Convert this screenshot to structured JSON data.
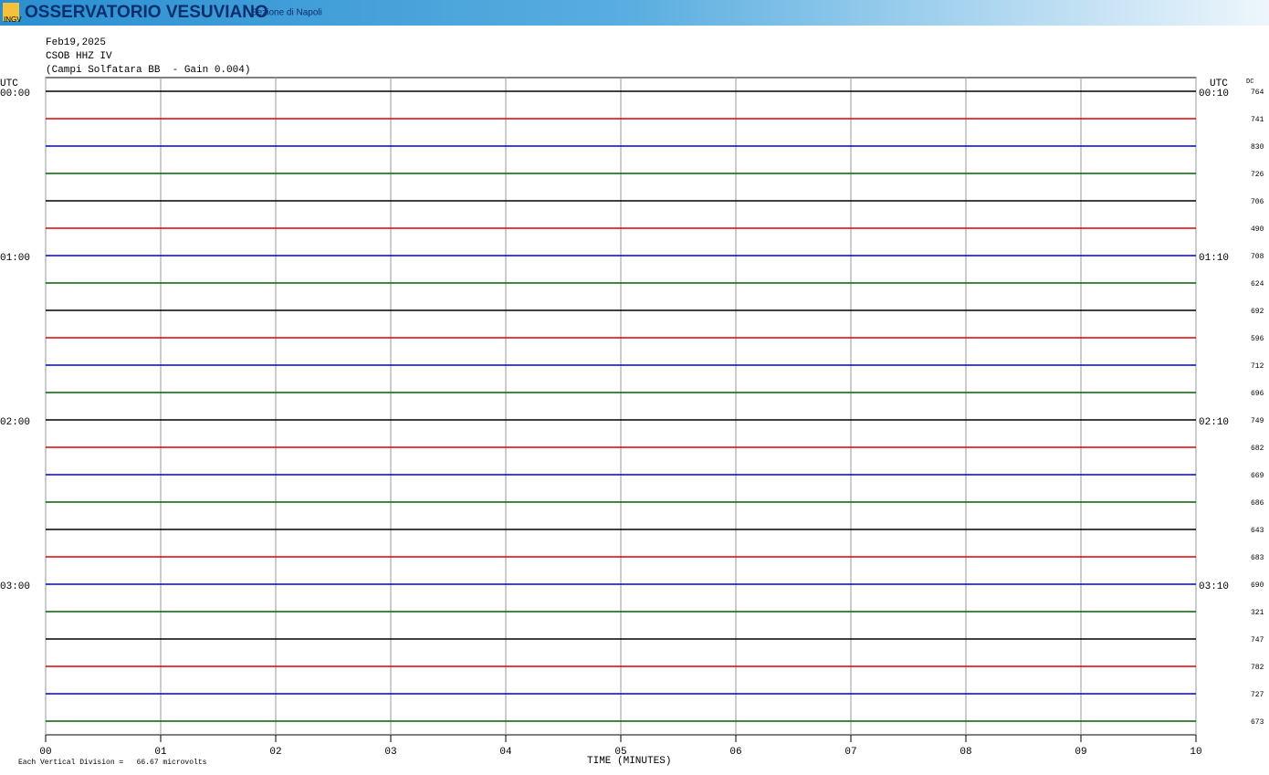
{
  "header": {
    "title": "OSSERVATORIO VESUVIANO",
    "subtitle": "Sezione di Napoli",
    "logo": "INGV"
  },
  "chart_data": {
    "type": "seismogram",
    "date": "Feb19,2025",
    "station": "CSOB HHZ IV",
    "description": "(Campi Solfatara BB  - Gain 0.004)",
    "left_axis_title": "UTC",
    "right_axis_title": "UTC",
    "dc_title": "DC",
    "x_label": "TIME (MINUTES)",
    "scale_note": "Each Vertical Division =   66.67 microvolts",
    "xlim": [
      0,
      10
    ],
    "xticks": [
      {
        "value": 0,
        "label": "00"
      },
      {
        "value": 1,
        "label": "01"
      },
      {
        "value": 2,
        "label": "02"
      },
      {
        "value": 3,
        "label": "03"
      },
      {
        "value": 4,
        "label": "04"
      },
      {
        "value": 5,
        "label": "05"
      },
      {
        "value": 6,
        "label": "06"
      },
      {
        "value": 7,
        "label": "07"
      },
      {
        "value": 8,
        "label": "08"
      },
      {
        "value": 9,
        "label": "09"
      },
      {
        "value": 10,
        "label": "10"
      }
    ],
    "grid": true,
    "trace_colors": [
      "#000000",
      "#e00000",
      "#0000e0",
      "#006400"
    ],
    "left_labels": [
      "00:00",
      null,
      null,
      null,
      null,
      null,
      "01:00",
      null,
      null,
      null,
      null,
      null,
      "02:00",
      null,
      null,
      null,
      null,
      null,
      "03:00",
      null,
      null,
      null,
      null,
      null
    ],
    "right_labels": [
      "00:10",
      null,
      null,
      null,
      null,
      null,
      "01:10",
      null,
      null,
      null,
      null,
      null,
      "02:10",
      null,
      null,
      null,
      null,
      null,
      "03:10",
      null,
      null,
      null,
      null,
      null
    ],
    "dc": [
      764,
      741,
      830,
      726,
      706,
      490,
      708,
      624,
      692,
      596,
      712,
      696,
      749,
      682,
      669,
      686,
      643,
      683,
      690,
      321,
      747,
      782,
      727,
      673
    ]
  }
}
